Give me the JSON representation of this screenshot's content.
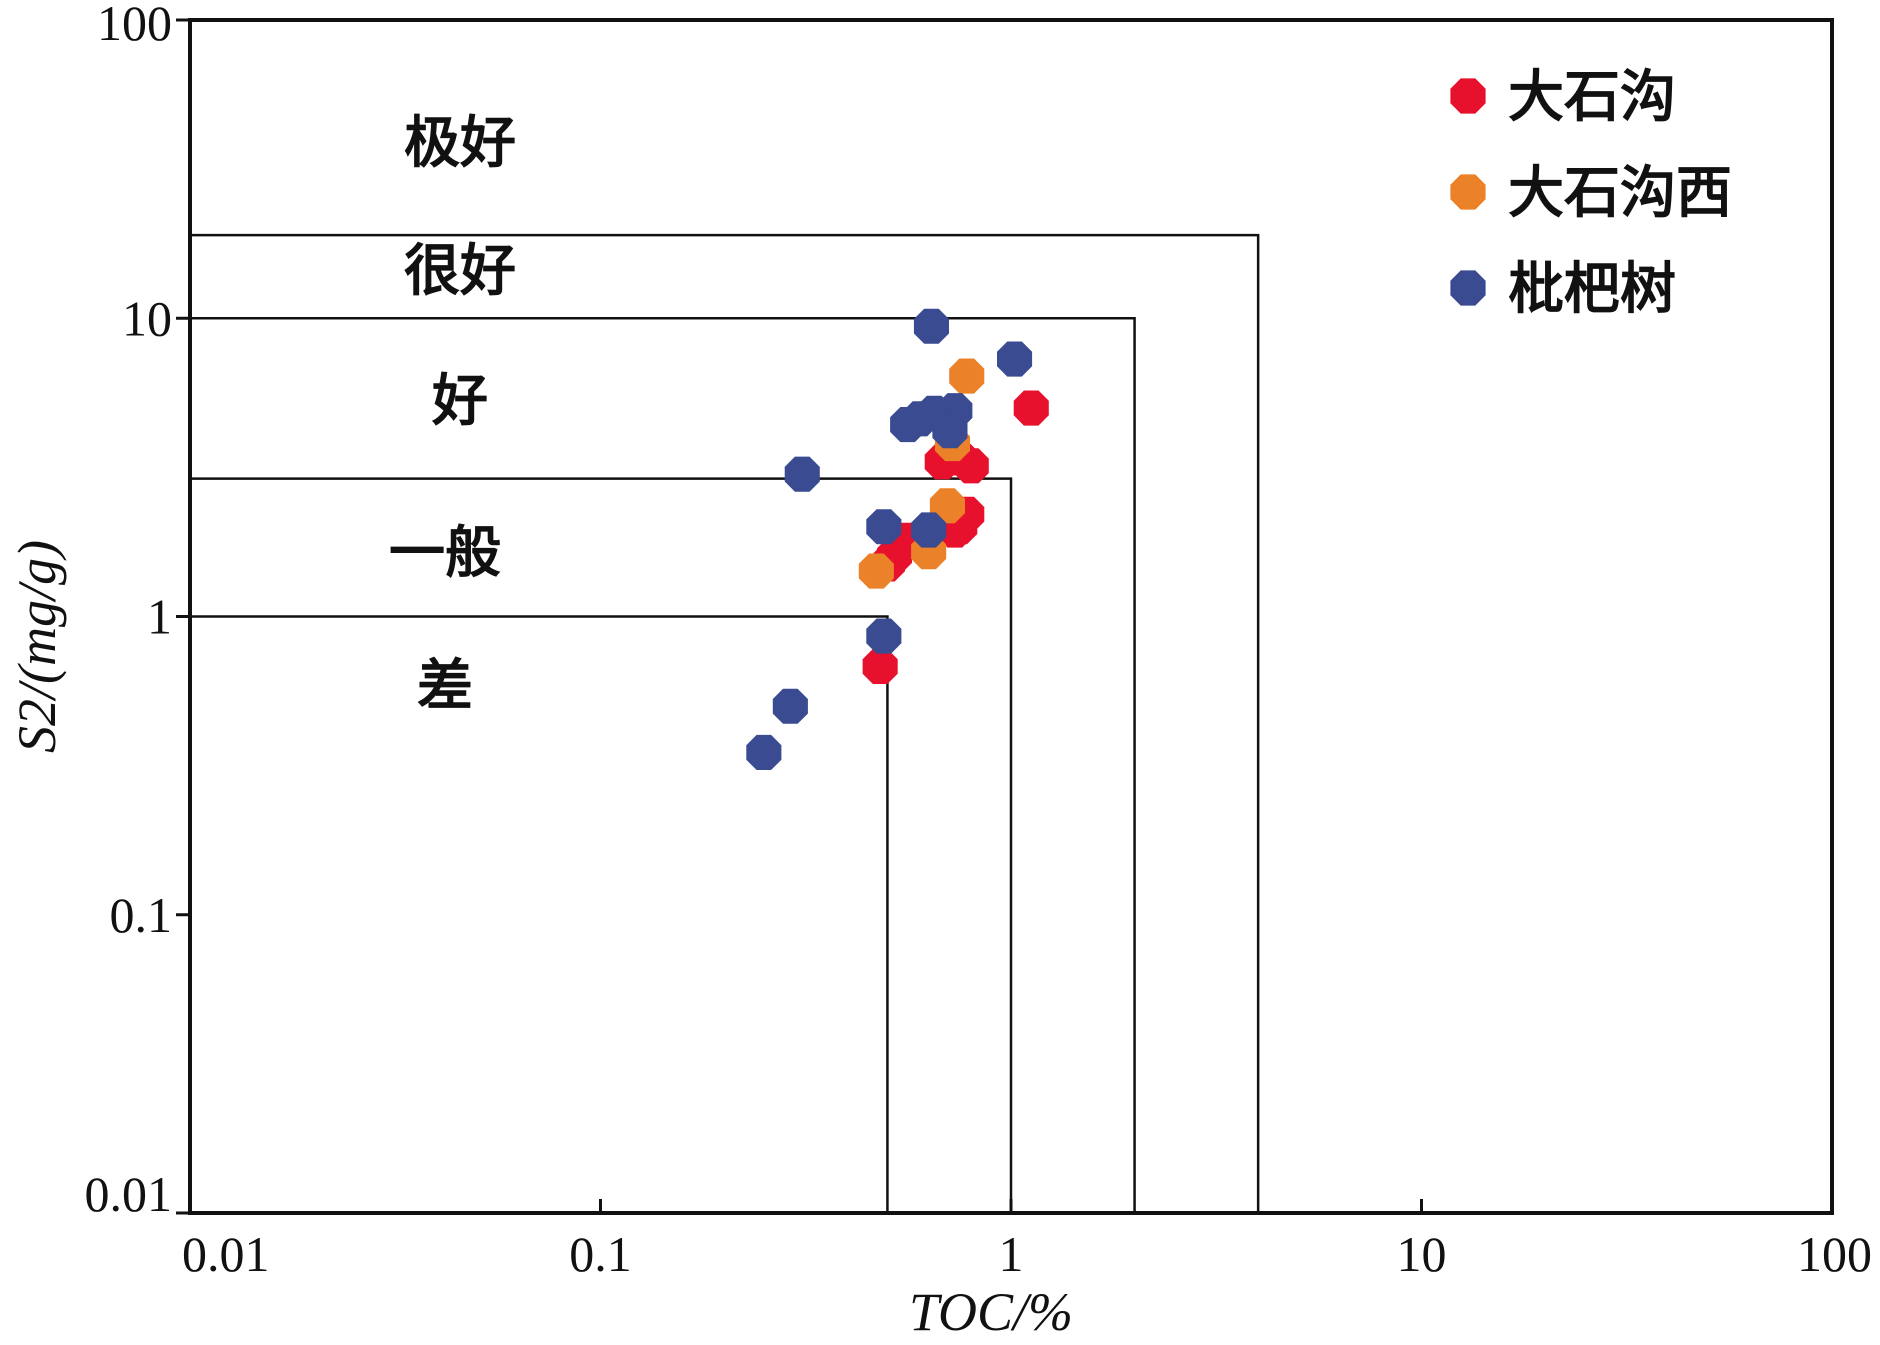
{
  "chart_data": {
    "type": "scatter",
    "x_scale": "log",
    "y_scale": "log",
    "xlim": [
      0.01,
      100
    ],
    "ylim": [
      0.01,
      100
    ],
    "x_ticks": [
      "0.01",
      "0.1",
      "1",
      "10",
      "100"
    ],
    "y_ticks": [
      "0.01",
      "0.1",
      "1",
      "10",
      "100"
    ],
    "xlabel": "TOC/%",
    "ylabel": "S2/(mg/g)",
    "grid": false,
    "legend_position": "top-right",
    "zones": [
      {
        "label": "极好",
        "x_max": null,
        "y_min": 20
      },
      {
        "label": "很好",
        "x_max": 4,
        "y_min": 10,
        "y_max": 20
      },
      {
        "label": "好",
        "x_max": 2,
        "y_min": 3,
        "y_max": 10
      },
      {
        "label": "一般",
        "x_max": 1,
        "y_min": 1,
        "y_max": 3
      },
      {
        "label": "差",
        "x_max": 0.5,
        "y_max": 1
      }
    ],
    "boundaries": [
      {
        "x": 0.5,
        "y": 1
      },
      {
        "x": 1,
        "y": 2.9
      },
      {
        "x": 2,
        "y": 10
      },
      {
        "x": 4,
        "y": 19
      }
    ],
    "series": [
      {
        "name": "大石沟",
        "color": "#e8112d",
        "points": [
          [
            1.12,
            5.0
          ],
          [
            0.68,
            3.3
          ],
          [
            0.8,
            3.2
          ],
          [
            0.75,
            3.4
          ],
          [
            0.78,
            2.2
          ],
          [
            0.75,
            2.0
          ],
          [
            0.73,
            1.95
          ],
          [
            0.55,
            1.8
          ],
          [
            0.52,
            1.6
          ],
          [
            0.5,
            1.5
          ],
          [
            0.48,
            0.68
          ]
        ]
      },
      {
        "name": "大石沟西",
        "color": "#eb8128",
        "points": [
          [
            0.78,
            6.4
          ],
          [
            0.72,
            3.8
          ],
          [
            0.7,
            2.35
          ],
          [
            0.63,
            1.65
          ],
          [
            0.47,
            1.42
          ]
        ]
      },
      {
        "name": "枇杷树",
        "color": "#3a4b92",
        "points": [
          [
            0.64,
            9.4
          ],
          [
            1.02,
            7.3
          ],
          [
            0.73,
            4.9
          ],
          [
            0.65,
            4.8
          ],
          [
            0.6,
            4.6
          ],
          [
            0.56,
            4.4
          ],
          [
            0.71,
            4.2
          ],
          [
            0.31,
            3.0
          ],
          [
            0.49,
            2.0
          ],
          [
            0.63,
            1.95
          ],
          [
            0.49,
            0.86
          ],
          [
            0.29,
            0.5
          ],
          [
            0.25,
            0.35
          ]
        ]
      }
    ]
  }
}
